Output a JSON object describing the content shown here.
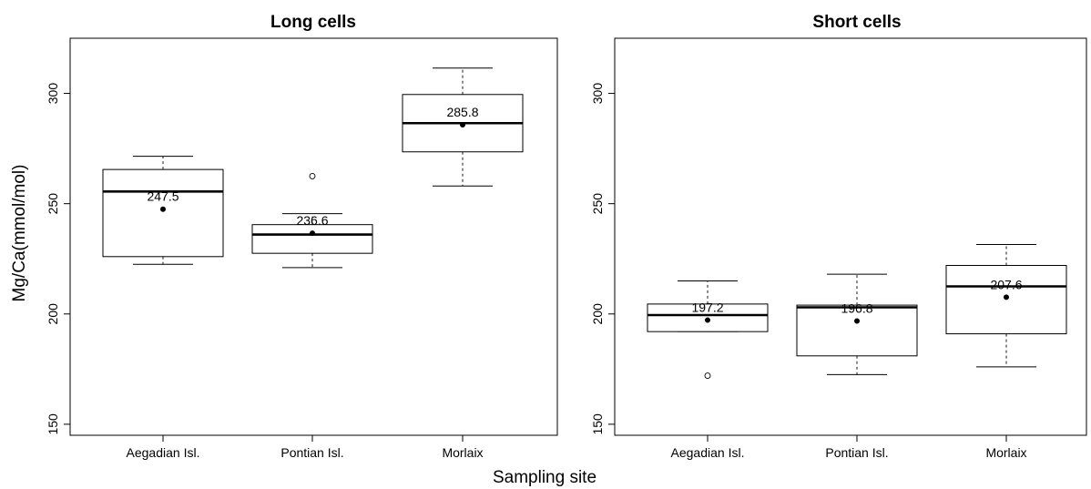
{
  "figure": {
    "ylabel": "Mg/Ca(mmol/mol)",
    "xlabel": "Sampling site"
  },
  "chart_data": [
    {
      "type": "boxplot",
      "title": "Long cells",
      "ylabel": "Mg/Ca(mmol/mol)",
      "xlabel": "Sampling site",
      "ylim": [
        145,
        325
      ],
      "yticks": [
        150,
        200,
        250,
        300
      ],
      "grid": false,
      "categories": [
        "Aegadian Isl.",
        "Pontian Isl.",
        "Morlaix"
      ],
      "boxes": [
        {
          "category": "Aegadian Isl.",
          "whisker_low": 222.5,
          "q1": 226,
          "median": 255.5,
          "q3": 265.5,
          "whisker_high": 271.5,
          "mean": 247.5,
          "mean_label": "247.5",
          "outliers": []
        },
        {
          "category": "Pontian Isl.",
          "whisker_low": 221,
          "q1": 227.5,
          "median": 236,
          "q3": 240.5,
          "whisker_high": 245.5,
          "mean": 236.6,
          "mean_label": "236.6",
          "outliers": [
            262.5
          ]
        },
        {
          "category": "Morlaix",
          "whisker_low": 258,
          "q1": 273.5,
          "median": 286.5,
          "q3": 299.5,
          "whisker_high": 311.5,
          "mean": 285.8,
          "mean_label": "285.8",
          "outliers": []
        }
      ]
    },
    {
      "type": "boxplot",
      "title": "Short cells",
      "ylabel": "Mg/Ca(mmol/mol)",
      "xlabel": "Sampling site",
      "ylim": [
        145,
        325
      ],
      "yticks": [
        150,
        200,
        250,
        300
      ],
      "grid": false,
      "categories": [
        "Aegadian Isl.",
        "Pontian Isl.",
        "Morlaix"
      ],
      "boxes": [
        {
          "category": "Aegadian Isl.",
          "whisker_low": 192,
          "q1": 192,
          "median": 199.5,
          "q3": 204.5,
          "whisker_high": 215,
          "mean": 197.2,
          "mean_label": "197.2",
          "outliers": [
            172
          ]
        },
        {
          "category": "Pontian Isl.",
          "whisker_low": 172.5,
          "q1": 181,
          "median": 203,
          "q3": 204,
          "whisker_high": 218,
          "mean": 196.8,
          "mean_label": "196.8",
          "outliers": []
        },
        {
          "category": "Morlaix",
          "whisker_low": 176,
          "q1": 191,
          "median": 212.5,
          "q3": 222,
          "whisker_high": 231.5,
          "mean": 207.6,
          "mean_label": "207.6",
          "outliers": []
        }
      ]
    }
  ]
}
